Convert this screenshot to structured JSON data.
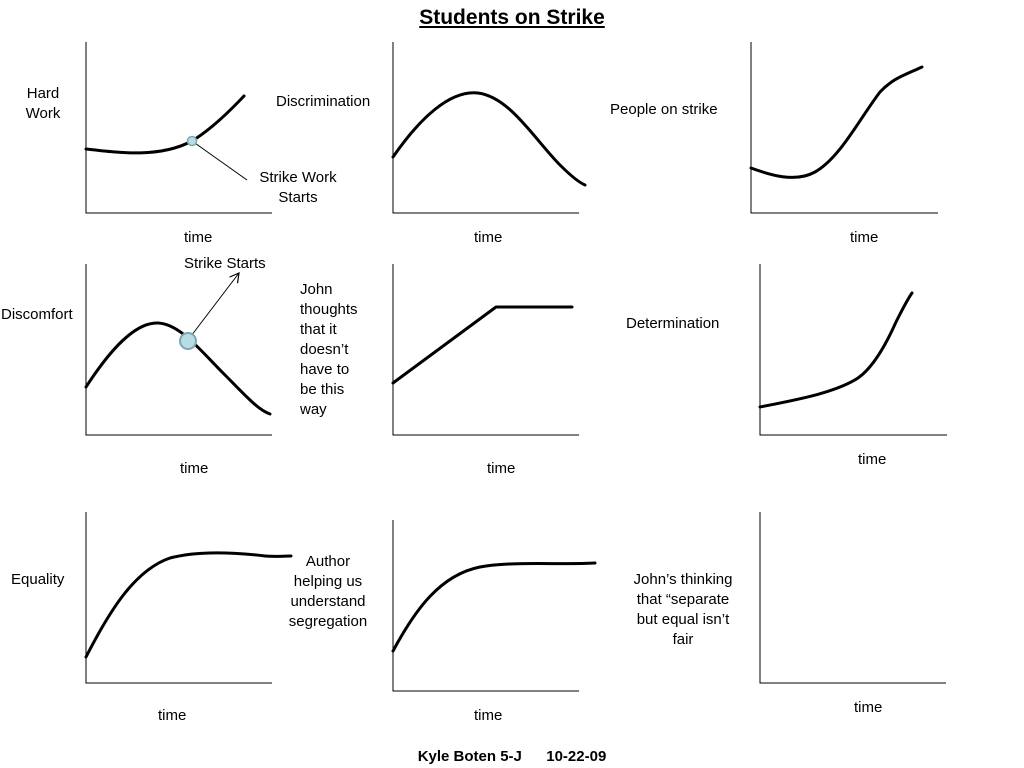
{
  "title": "Students on Strike",
  "footer": {
    "author": "Kyle Boten 5-J",
    "date": "10-22-09"
  },
  "panels": [
    {
      "ylabel": "Hard\nWork",
      "xlabel": "time",
      "annotation": "Strike Work\nStarts"
    },
    {
      "ylabel": "Discrimination",
      "xlabel": "time"
    },
    {
      "ylabel": "People on strike",
      "xlabel": "time"
    },
    {
      "ylabel": "Discomfort",
      "xlabel": "time",
      "annotation": "Strike Starts"
    },
    {
      "ylabel": "John\nthoughts\nthat it\ndoesn’t\nhave to\nbe this\nway",
      "xlabel": "time"
    },
    {
      "ylabel": "Determination",
      "xlabel": "time"
    },
    {
      "ylabel": "Equality",
      "xlabel": "time"
    },
    {
      "ylabel": "Author\nhelping us\nunderstand\nsegregation",
      "xlabel": "time"
    },
    {
      "ylabel": "John’s thinking\nthat “separate\nbut equal isn’t\nfair",
      "xlabel": "time"
    }
  ],
  "colors": {
    "curve": "#000000",
    "marker_fill": "#b9dbe3",
    "marker_stroke": "#7aa9b5"
  }
}
